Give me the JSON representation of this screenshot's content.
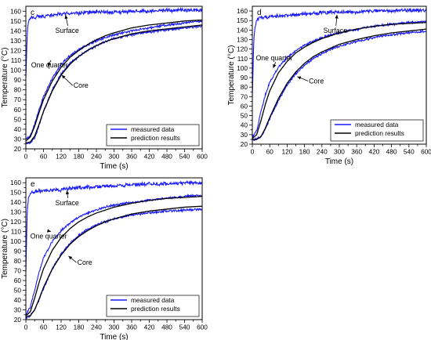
{
  "figure": {
    "description_colors": {
      "measured": "#1a1aff",
      "prediction": "#000000"
    }
  },
  "chart_data": [
    {
      "panel_label": "c",
      "type": "line",
      "xlabel": "Time (s)",
      "ylabel": "Temperature (°C)",
      "xlim": [
        0,
        600
      ],
      "ylim": [
        20,
        165
      ],
      "xticks": [
        0,
        30,
        60,
        90,
        120,
        150,
        180,
        210,
        240,
        270,
        300,
        330,
        360,
        390,
        420,
        450,
        480,
        510,
        540,
        570,
        600
      ],
      "xtick_labels": [
        "0",
        "",
        "60",
        "",
        "120",
        "",
        "180",
        "",
        "240",
        "",
        "300",
        "",
        "360",
        "",
        "420",
        "",
        "480",
        "",
        "540",
        "",
        "600"
      ],
      "yticks": [
        20,
        30,
        40,
        50,
        60,
        70,
        80,
        90,
        100,
        110,
        120,
        130,
        140,
        150,
        160
      ],
      "legend": {
        "position": "bottom-right",
        "entries": [
          "measured data",
          "prediction results"
        ]
      },
      "annotations": [
        {
          "text": "Surface",
          "x": 100,
          "y": 138,
          "arrow_to": [
            135,
            156
          ]
        },
        {
          "text": "One quarter",
          "x": 18,
          "y": 103,
          "arrow_to": [
            75,
            104
          ]
        },
        {
          "text": "Core",
          "x": 162,
          "y": 82,
          "arrow_to": [
            122,
            95
          ]
        }
      ],
      "series": [
        {
          "name": "measured data",
          "kind": "measured",
          "curve": "surface",
          "color": "#1a1aff",
          "x": [
            0,
            5,
            10,
            15,
            20,
            30,
            60,
            120,
            180,
            240,
            300,
            360,
            420,
            480,
            540,
            600
          ],
          "y": [
            92,
            140,
            150,
            153,
            154,
            154,
            155,
            157,
            158,
            159,
            159,
            160,
            160,
            161,
            161,
            161
          ]
        },
        {
          "name": "measured data",
          "kind": "measured",
          "curve": "quarter",
          "color": "#1a1aff",
          "x": [
            0,
            15,
            30,
            45,
            60,
            90,
            120,
            150,
            180,
            210,
            240,
            270,
            300,
            360,
            420,
            480,
            540,
            600
          ],
          "y": [
            30,
            33,
            45,
            60,
            73,
            92,
            106,
            115,
            121,
            126,
            130,
            133,
            136,
            140,
            143,
            146,
            148,
            150
          ]
        },
        {
          "name": "measured data",
          "kind": "measured",
          "curve": "core",
          "color": "#1a1aff",
          "x": [
            0,
            15,
            30,
            45,
            60,
            90,
            120,
            150,
            180,
            210,
            240,
            270,
            300,
            360,
            420,
            480,
            540,
            600
          ],
          "y": [
            26,
            26,
            31,
            44,
            58,
            80,
            96,
            107,
            114,
            120,
            125,
            129,
            132,
            136,
            139,
            141,
            143,
            145
          ]
        },
        {
          "name": "prediction results",
          "kind": "prediction",
          "curve": "quarter",
          "color": "#000000",
          "x": [
            0,
            15,
            30,
            45,
            60,
            90,
            120,
            150,
            180,
            210,
            240,
            270,
            300,
            360,
            420,
            480,
            540,
            600
          ],
          "y": [
            28,
            32,
            43,
            57,
            70,
            89,
            103,
            113,
            120,
            126,
            131,
            135,
            138,
            143,
            146,
            148,
            150,
            151
          ]
        },
        {
          "name": "prediction results",
          "kind": "prediction",
          "curve": "core",
          "color": "#000000",
          "x": [
            0,
            15,
            30,
            45,
            60,
            90,
            120,
            150,
            180,
            210,
            240,
            270,
            300,
            360,
            420,
            480,
            540,
            600
          ],
          "y": [
            26,
            27,
            33,
            45,
            58,
            79,
            95,
            106,
            114,
            120,
            125,
            129,
            132,
            137,
            140,
            142,
            144,
            146
          ]
        }
      ]
    },
    {
      "panel_label": "d",
      "type": "line",
      "xlabel": "Time (s)",
      "ylabel": "Temperature (°C)",
      "xlim": [
        0,
        600
      ],
      "ylim": [
        20,
        165
      ],
      "xticks": [
        0,
        30,
        60,
        90,
        120,
        150,
        180,
        210,
        240,
        270,
        300,
        330,
        360,
        390,
        420,
        450,
        480,
        510,
        540,
        570,
        600
      ],
      "xtick_labels": [
        "0",
        "",
        "60",
        "",
        "120",
        "",
        "180",
        "",
        "240",
        "",
        "300",
        "",
        "360",
        "",
        "420",
        "",
        "480",
        "",
        "540",
        "",
        "600"
      ],
      "yticks": [
        20,
        30,
        40,
        50,
        60,
        70,
        80,
        90,
        100,
        110,
        120,
        130,
        140,
        150,
        160
      ],
      "legend": {
        "position": "bottom-right",
        "entries": [
          "measured data",
          "prediction results"
        ]
      },
      "annotations": [
        {
          "text": "Surface",
          "x": 245,
          "y": 137,
          "arrow_to": [
            292,
            156
          ]
        },
        {
          "text": "One quarter",
          "x": 12,
          "y": 108,
          "arrow_to": [
            72,
            100
          ]
        },
        {
          "text": "Core",
          "x": 195,
          "y": 84,
          "arrow_to": [
            155,
            91
          ]
        }
      ],
      "series": [
        {
          "name": "measured data",
          "kind": "measured",
          "curve": "surface",
          "color": "#1a1aff",
          "x": [
            0,
            5,
            10,
            15,
            20,
            30,
            60,
            120,
            180,
            240,
            300,
            360,
            420,
            480,
            540,
            600
          ],
          "y": [
            70,
            130,
            145,
            150,
            152,
            153,
            154,
            155,
            157,
            158,
            159,
            159,
            160,
            160,
            161,
            161
          ]
        },
        {
          "name": "measured data",
          "kind": "measured",
          "curve": "quarter",
          "color": "#1a1aff",
          "x": [
            0,
            15,
            30,
            45,
            60,
            90,
            120,
            150,
            180,
            210,
            240,
            270,
            300,
            360,
            420,
            480,
            540,
            600
          ],
          "y": [
            27,
            34,
            55,
            72,
            85,
            101,
            111,
            118,
            124,
            128,
            132,
            135,
            137,
            141,
            144,
            146,
            148,
            149
          ]
        },
        {
          "name": "measured data",
          "kind": "measured",
          "curve": "core",
          "color": "#1a1aff",
          "x": [
            0,
            15,
            30,
            45,
            60,
            90,
            120,
            150,
            180,
            210,
            240,
            270,
            300,
            360,
            420,
            480,
            540,
            600
          ],
          "y": [
            25,
            25,
            28,
            36,
            47,
            66,
            82,
            94,
            103,
            110,
            115,
            120,
            123,
            128,
            132,
            135,
            137,
            139
          ]
        },
        {
          "name": "prediction results",
          "kind": "prediction",
          "curve": "quarter",
          "color": "#000000",
          "x": [
            0,
            15,
            30,
            45,
            60,
            90,
            120,
            150,
            180,
            210,
            240,
            270,
            300,
            360,
            420,
            480,
            540,
            600
          ],
          "y": [
            26,
            30,
            45,
            62,
            76,
            95,
            107,
            116,
            122,
            127,
            131,
            134,
            137,
            141,
            144,
            146,
            147,
            148
          ]
        },
        {
          "name": "prediction results",
          "kind": "prediction",
          "curve": "core",
          "color": "#000000",
          "x": [
            0,
            15,
            30,
            45,
            60,
            90,
            120,
            150,
            180,
            210,
            240,
            270,
            300,
            360,
            420,
            480,
            540,
            600
          ],
          "y": [
            25,
            25,
            28,
            37,
            48,
            68,
            84,
            96,
            105,
            112,
            117,
            121,
            125,
            130,
            134,
            137,
            139,
            141
          ]
        }
      ]
    },
    {
      "panel_label": "e",
      "type": "line",
      "xlabel": "Time (s)",
      "ylabel": "Temperature (°C)",
      "xlim": [
        0,
        600
      ],
      "ylim": [
        20,
        165
      ],
      "xticks": [
        0,
        30,
        60,
        90,
        120,
        150,
        180,
        210,
        240,
        270,
        300,
        330,
        360,
        390,
        420,
        450,
        480,
        510,
        540,
        570,
        600
      ],
      "xtick_labels": [
        "0",
        "",
        "60",
        "",
        "120",
        "",
        "180",
        "",
        "240",
        "",
        "300",
        "",
        "360",
        "",
        "420",
        "",
        "480",
        "",
        "540",
        "",
        "600"
      ],
      "yticks": [
        20,
        30,
        40,
        50,
        60,
        70,
        80,
        90,
        100,
        110,
        120,
        130,
        140,
        150,
        160
      ],
      "legend": {
        "position": "bottom-right",
        "entries": [
          "measured data",
          "prediction results"
        ]
      },
      "annotations": [
        {
          "text": "Surface",
          "x": 100,
          "y": 137,
          "arrow_to": [
            140,
            152
          ]
        },
        {
          "text": "One quarter",
          "x": 15,
          "y": 103,
          "arrow_to": [
            85,
            110
          ]
        },
        {
          "text": "Core",
          "x": 175,
          "y": 76,
          "arrow_to": [
            145,
            85
          ]
        }
      ],
      "series": [
        {
          "name": "measured data",
          "kind": "measured",
          "curve": "surface",
          "color": "#1a1aff",
          "x": [
            0,
            5,
            10,
            15,
            20,
            30,
            60,
            120,
            180,
            240,
            300,
            360,
            420,
            480,
            540,
            600
          ],
          "y": [
            68,
            135,
            146,
            149,
            150,
            151,
            152,
            153,
            155,
            156,
            157,
            158,
            159,
            159,
            160,
            160
          ]
        },
        {
          "name": "measured data",
          "kind": "measured",
          "curve": "quarter",
          "color": "#1a1aff",
          "x": [
            0,
            15,
            30,
            45,
            60,
            90,
            120,
            150,
            180,
            210,
            240,
            270,
            300,
            360,
            420,
            480,
            540,
            600
          ],
          "y": [
            25,
            33,
            50,
            68,
            83,
            100,
            111,
            119,
            125,
            129,
            132,
            135,
            137,
            140,
            142,
            144,
            146,
            147
          ]
        },
        {
          "name": "measured data",
          "kind": "measured",
          "curve": "core",
          "color": "#1a1aff",
          "x": [
            0,
            15,
            30,
            45,
            60,
            90,
            120,
            150,
            180,
            210,
            240,
            270,
            300,
            360,
            420,
            480,
            540,
            600
          ],
          "y": [
            22,
            24,
            30,
            40,
            52,
            72,
            87,
            98,
            106,
            112,
            117,
            120,
            123,
            127,
            129,
            131,
            132,
            133
          ]
        },
        {
          "name": "prediction results",
          "kind": "prediction",
          "curve": "quarter",
          "color": "#000000",
          "x": [
            0,
            15,
            30,
            45,
            60,
            90,
            120,
            150,
            180,
            210,
            240,
            270,
            300,
            360,
            420,
            480,
            540,
            600
          ],
          "y": [
            24,
            28,
            42,
            58,
            72,
            91,
            104,
            113,
            120,
            125,
            129,
            132,
            135,
            139,
            142,
            144,
            145,
            146
          ]
        },
        {
          "name": "prediction results",
          "kind": "prediction",
          "curve": "core",
          "color": "#000000",
          "x": [
            0,
            15,
            30,
            45,
            60,
            90,
            120,
            150,
            180,
            210,
            240,
            270,
            300,
            360,
            420,
            480,
            540,
            600
          ],
          "y": [
            23,
            24,
            30,
            41,
            53,
            72,
            86,
            97,
            105,
            111,
            116,
            120,
            123,
            128,
            131,
            133,
            135,
            136
          ]
        }
      ]
    }
  ]
}
